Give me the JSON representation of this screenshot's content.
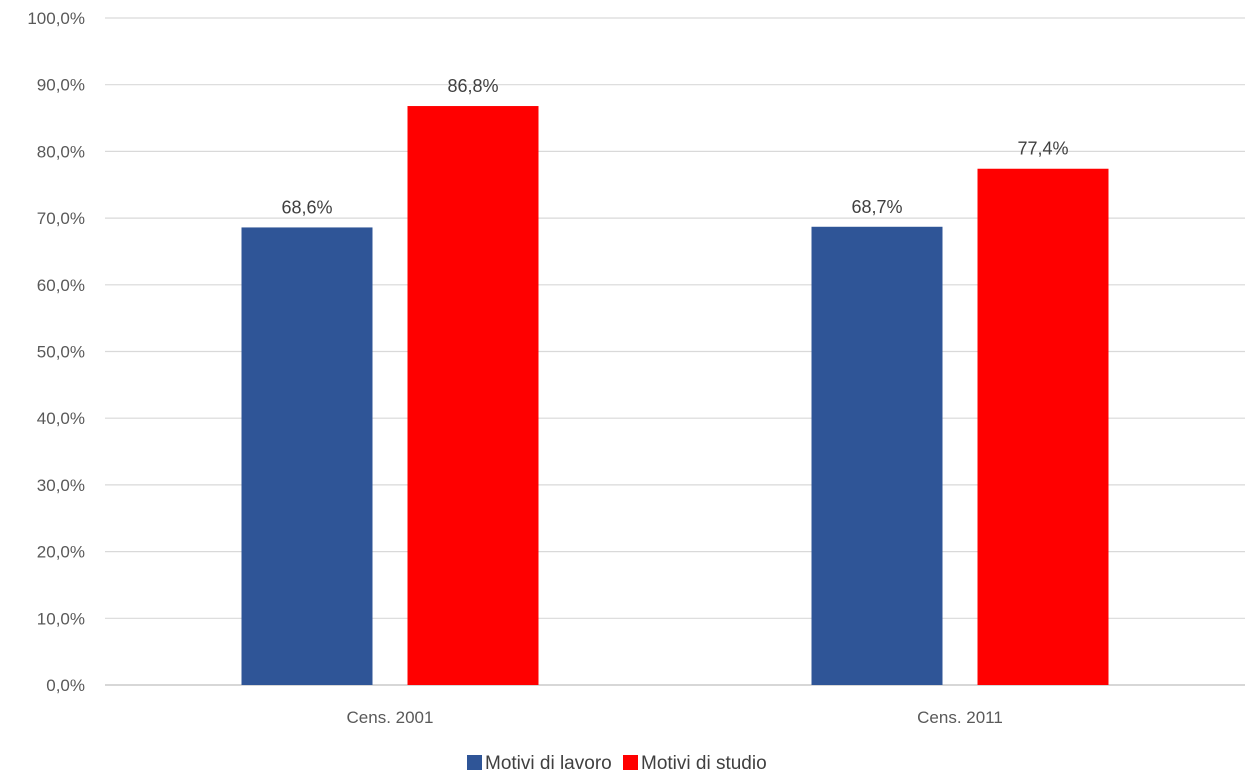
{
  "chart_data": {
    "type": "bar",
    "categories": [
      "Cens. 2001",
      "Cens. 2011"
    ],
    "series": [
      {
        "name": "Motivi di lavoro",
        "color": "#2F5597",
        "values": [
          68.6,
          68.7
        ],
        "labels": [
          "68,6%",
          "68,7%"
        ]
      },
      {
        "name": "Motivi di studio",
        "color": "#FF0000",
        "values": [
          86.8,
          77.4
        ],
        "labels": [
          "86,8%",
          "77,4%"
        ]
      }
    ],
    "yticks": [
      "0,0%",
      "10,0%",
      "20,0%",
      "30,0%",
      "40,0%",
      "50,0%",
      "60,0%",
      "70,0%",
      "80,0%",
      "90,0%",
      "100,0%"
    ],
    "ylim": [
      0,
      100
    ],
    "title": "",
    "xlabel": "",
    "ylabel": "",
    "grid": true,
    "legend_position": "bottom-center"
  }
}
